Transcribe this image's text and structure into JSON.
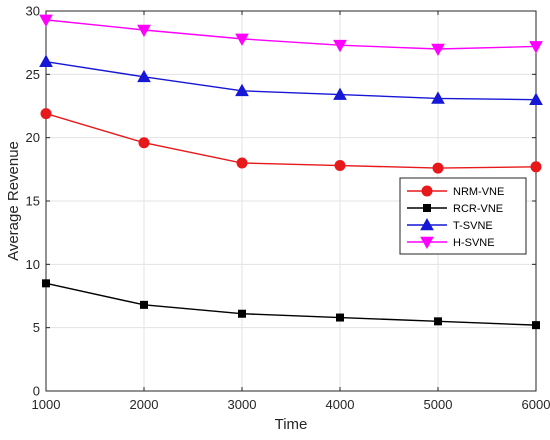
{
  "chart_data": {
    "type": "line",
    "title": "",
    "xlabel": "Time",
    "ylabel": "Average Revenue",
    "x": [
      1000,
      2000,
      3000,
      4000,
      5000,
      6000
    ],
    "xlim": [
      1000,
      6000
    ],
    "ylim": [
      0,
      30
    ],
    "xticks": [
      1000,
      2000,
      3000,
      4000,
      5000,
      6000
    ],
    "yticks": [
      0,
      5,
      10,
      15,
      20,
      25,
      30
    ],
    "grid": true,
    "legend_position": "right",
    "series": [
      {
        "name": "NRM-VNE",
        "color": "#e8191b",
        "marker": "circle",
        "values": [
          21.9,
          19.6,
          18.0,
          17.8,
          17.6,
          17.7
        ]
      },
      {
        "name": "RCR-VNE",
        "color": "#000000",
        "marker": "square",
        "values": [
          8.5,
          6.8,
          6.1,
          5.8,
          5.5,
          5.2
        ]
      },
      {
        "name": "T-SVNE",
        "color": "#1717d6",
        "marker": "triangle-up",
        "values": [
          26.0,
          24.8,
          23.7,
          23.4,
          23.1,
          23.0
        ]
      },
      {
        "name": "H-SVNE",
        "color": "#ff00ff",
        "marker": "triangle-down",
        "values": [
          29.3,
          28.5,
          27.8,
          27.3,
          27.0,
          27.2
        ]
      }
    ]
  }
}
